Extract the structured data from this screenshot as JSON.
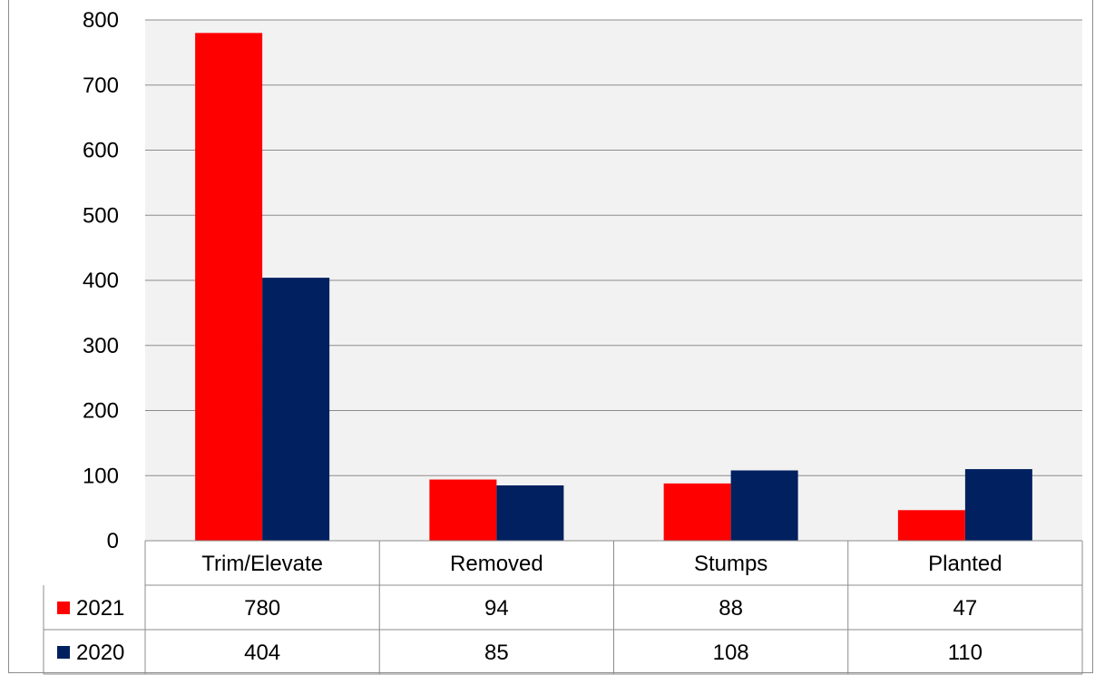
{
  "chart_data": {
    "type": "bar",
    "categories": [
      "Trim/Elevate",
      "Removed",
      "Stumps",
      "Planted"
    ],
    "series": [
      {
        "name": "2021",
        "color": "#ff0000",
        "values": [
          780,
          94,
          88,
          47
        ]
      },
      {
        "name": "2020",
        "color": "#002060",
        "values": [
          404,
          85,
          108,
          110
        ]
      }
    ],
    "ylim": [
      0,
      800
    ],
    "yticks": [
      0,
      100,
      200,
      300,
      400,
      500,
      600,
      700,
      800
    ],
    "grid": true,
    "plot_background": "#f2f2f2",
    "data_table": true
  }
}
